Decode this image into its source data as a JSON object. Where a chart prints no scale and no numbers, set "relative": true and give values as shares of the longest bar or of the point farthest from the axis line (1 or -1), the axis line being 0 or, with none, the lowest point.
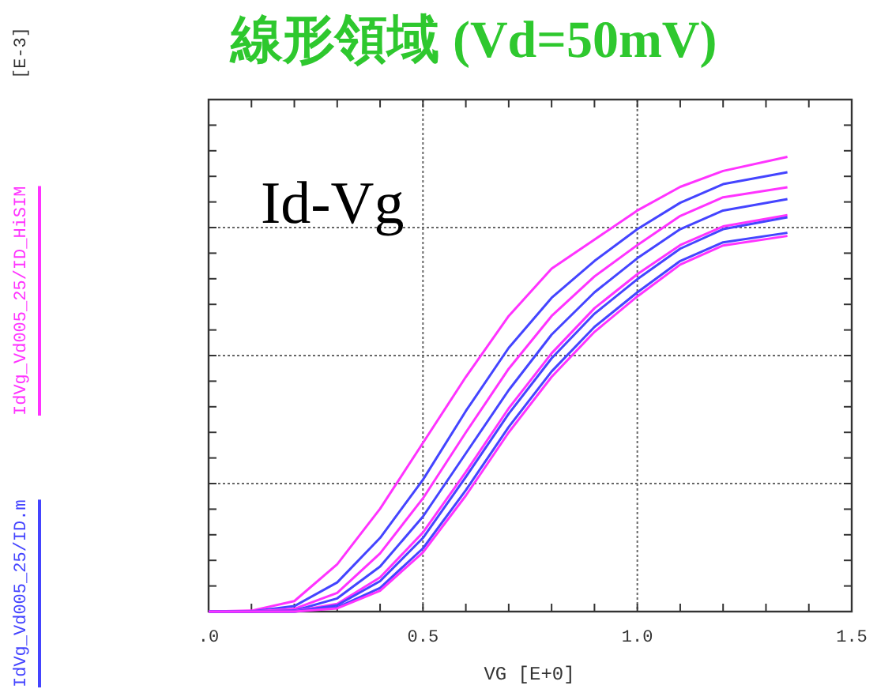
{
  "chart_data": {
    "type": "line",
    "title": "線形領域 (Vd=50mV)",
    "xlabel": "VG    [E+0]",
    "annotations": [
      "Id-Vg",
      "[E-3]"
    ],
    "relative": true,
    "grid": true,
    "legend": "left",
    "marker": "none",
    "line_style": "solid",
    "xlim": [
      0,
      1.5
    ],
    "xticks": [
      {
        "value": 0,
        "label": ".0"
      },
      {
        "value": 0.1,
        "label": null
      },
      {
        "value": 0.2,
        "label": null
      },
      {
        "value": 0.3,
        "label": null
      },
      {
        "value": 0.4,
        "label": null
      },
      0.5,
      {
        "value": 0.6,
        "label": null
      },
      {
        "value": 0.7,
        "label": null
      },
      {
        "value": 0.8,
        "label": null
      },
      {
        "value": 0.9,
        "label": null
      },
      {
        "value": 1.0,
        "label": "1.0"
      },
      {
        "value": 1.1,
        "label": null
      },
      {
        "value": 1.2,
        "label": null
      },
      {
        "value": 1.3,
        "label": null
      },
      {
        "value": 1.4,
        "label": null
      },
      1.5
    ],
    "x": [
      0,
      0.1,
      0.2,
      0.3,
      0.4,
      0.5,
      0.6,
      0.7,
      0.8,
      0.9,
      1.0,
      1.1,
      1.2,
      1.35
    ],
    "series": [
      {
        "name": "IdVg_Vd005_25/ID_HiSIM",
        "color": "#ff33ff",
        "values": [
          0,
          0.002,
          0.023,
          0.104,
          0.226,
          0.371,
          0.516,
          0.65,
          0.754,
          0.818,
          0.882,
          0.934,
          0.969,
          1.0
        ]
      },
      {
        "name": "IdVg_Vd005_25/ID.m",
        "color": "#4444ff",
        "values": [
          0,
          0,
          0.012,
          0.064,
          0.162,
          0.29,
          0.441,
          0.58,
          0.69,
          0.771,
          0.841,
          0.899,
          0.94,
          0.966
        ]
      },
      {
        "color": "#ff33ff",
        "values": [
          0,
          0,
          0.006,
          0.041,
          0.128,
          0.249,
          0.394,
          0.534,
          0.65,
          0.737,
          0.806,
          0.87,
          0.911,
          0.933
        ]
      },
      {
        "color": "#4444ff",
        "values": [
          0,
          0,
          0.002,
          0.029,
          0.099,
          0.209,
          0.348,
          0.487,
          0.609,
          0.702,
          0.777,
          0.841,
          0.882,
          0.907
        ]
      },
      {
        "color": "#ff33ff",
        "values": [
          0,
          0,
          0.001,
          0.017,
          0.075,
          0.174,
          0.307,
          0.447,
          0.568,
          0.667,
          0.742,
          0.806,
          0.847,
          0.872
        ]
      },
      {
        "color": "#4444ff",
        "values": [
          0,
          0,
          0,
          0.014,
          0.067,
          0.162,
          0.296,
          0.435,
          0.557,
          0.655,
          0.731,
          0.798,
          0.841,
          0.867
        ]
      },
      {
        "color": "#4444ff",
        "values": [
          0,
          0,
          0,
          0.009,
          0.052,
          0.139,
          0.267,
          0.406,
          0.528,
          0.626,
          0.702,
          0.771,
          0.812,
          0.833
        ]
      },
      {
        "color": "#ff33ff",
        "values": [
          0,
          0,
          0,
          0.007,
          0.046,
          0.13,
          0.255,
          0.394,
          0.516,
          0.615,
          0.693,
          0.763,
          0.805,
          0.826
        ]
      }
    ]
  }
}
